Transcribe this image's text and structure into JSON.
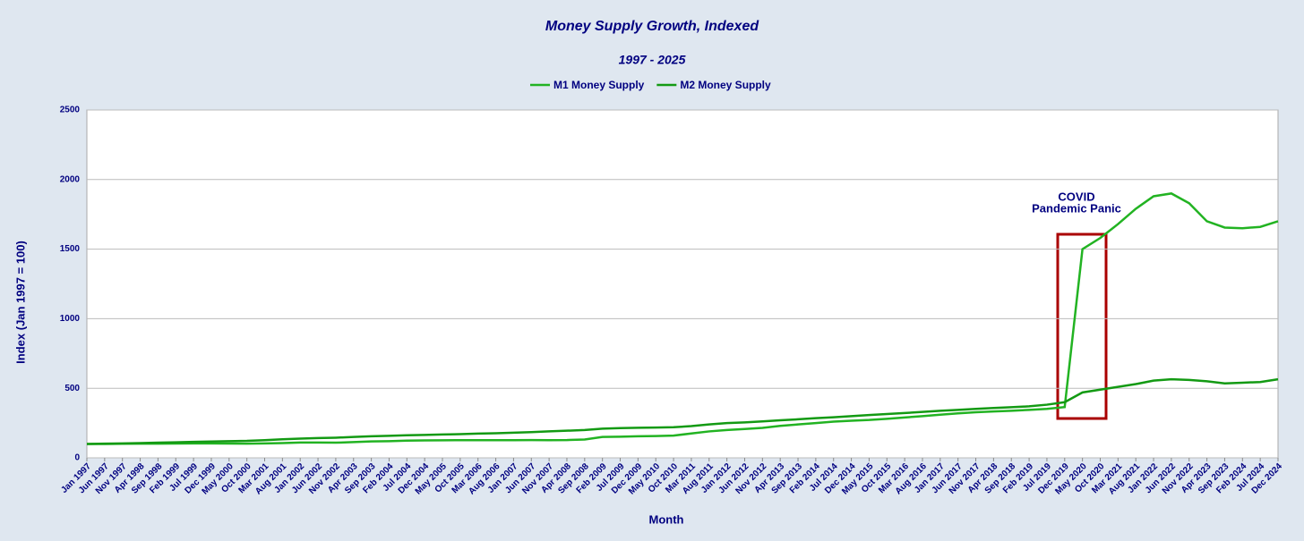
{
  "chart_data": {
    "type": "line",
    "title": "Money Supply Growth, Indexed",
    "subtitle": "1997 - 2025",
    "x_label": "Month",
    "y_label": "Index (Jan 1997 = 100)",
    "annotations": [
      "COVID",
      "Pandemic Panic"
    ],
    "legend": "top",
    "grid": true,
    "ylim": [
      0,
      2500
    ],
    "yticks": [
      0,
      500,
      1000,
      1500,
      2000,
      2500
    ],
    "categories": [
      "Jan 1997",
      "Jun 1997",
      "Nov 1997",
      "Apr 1998",
      "Sep 1998",
      "Feb 1999",
      "Jul 1999",
      "Dec 1999",
      "May 2000",
      "Oct 2000",
      "Mar 2001",
      "Aug 2001",
      "Jan 2002",
      "Jun 2002",
      "Nov 2002",
      "Apr 2003",
      "Sep 2003",
      "Feb 2004",
      "Jul 2004",
      "Dec 2004",
      "May 2005",
      "Oct 2005",
      "Mar 2006",
      "Aug 2006",
      "Jan 2007",
      "Jun 2007",
      "Nov 2007",
      "Apr 2008",
      "Sep 2008",
      "Feb 2009",
      "Jul 2009",
      "Dec 2009",
      "May 2010",
      "Oct 2010",
      "Mar 2011",
      "Aug 2011",
      "Jan 2012",
      "Jun 2012",
      "Nov 2012",
      "Apr 2013",
      "Sep 2013",
      "Feb 2014",
      "Jul 2014",
      "Dec 2014",
      "May 2015",
      "Oct 2015",
      "Mar 2016",
      "Aug 2016",
      "Jan 2017",
      "Jun 2017",
      "Nov 2017",
      "Apr 2018",
      "Sep 2018",
      "Feb 2019",
      "Jul 2019",
      "Dec 2019",
      "May 2020",
      "Oct 2020",
      "Mar 2021",
      "Aug 2021",
      "Jan 2022",
      "Jun 2022",
      "Nov 2022",
      "Apr 2023",
      "Sep 2023",
      "Feb 2024",
      "Jul 2024",
      "Dec 2024"
    ],
    "series": [
      {
        "name": "M1 Money Supply",
        "color": "#22b322",
        "values": [
          100,
          100,
          101,
          102,
          102,
          103,
          104,
          104,
          103,
          102,
          104,
          106,
          110,
          110,
          109,
          113,
          118,
          120,
          124,
          125,
          126,
          127,
          127,
          127,
          127,
          128,
          127,
          128,
          132,
          150,
          152,
          155,
          157,
          160,
          175,
          190,
          200,
          207,
          215,
          230,
          240,
          250,
          260,
          267,
          272,
          280,
          290,
          300,
          310,
          320,
          328,
          333,
          338,
          345,
          352,
          365,
          1500,
          1580,
          1680,
          1790,
          1880,
          1900,
          1830,
          1700,
          1655,
          1650,
          1660,
          1700
        ]
      },
      {
        "name": "M2 Money Supply",
        "color": "#139a13",
        "values": [
          100,
          102,
          104,
          106,
          109,
          112,
          115,
          117,
          120,
          122,
          127,
          133,
          138,
          142,
          145,
          150,
          155,
          158,
          162,
          165,
          168,
          170,
          174,
          177,
          181,
          185,
          190,
          195,
          200,
          210,
          214,
          216,
          218,
          220,
          228,
          240,
          250,
          255,
          262,
          270,
          277,
          285,
          292,
          300,
          308,
          315,
          322,
          330,
          338,
          345,
          352,
          358,
          364,
          370,
          382,
          400,
          470,
          490,
          510,
          530,
          555,
          565,
          560,
          550,
          535,
          540,
          545,
          565
        ]
      }
    ]
  }
}
